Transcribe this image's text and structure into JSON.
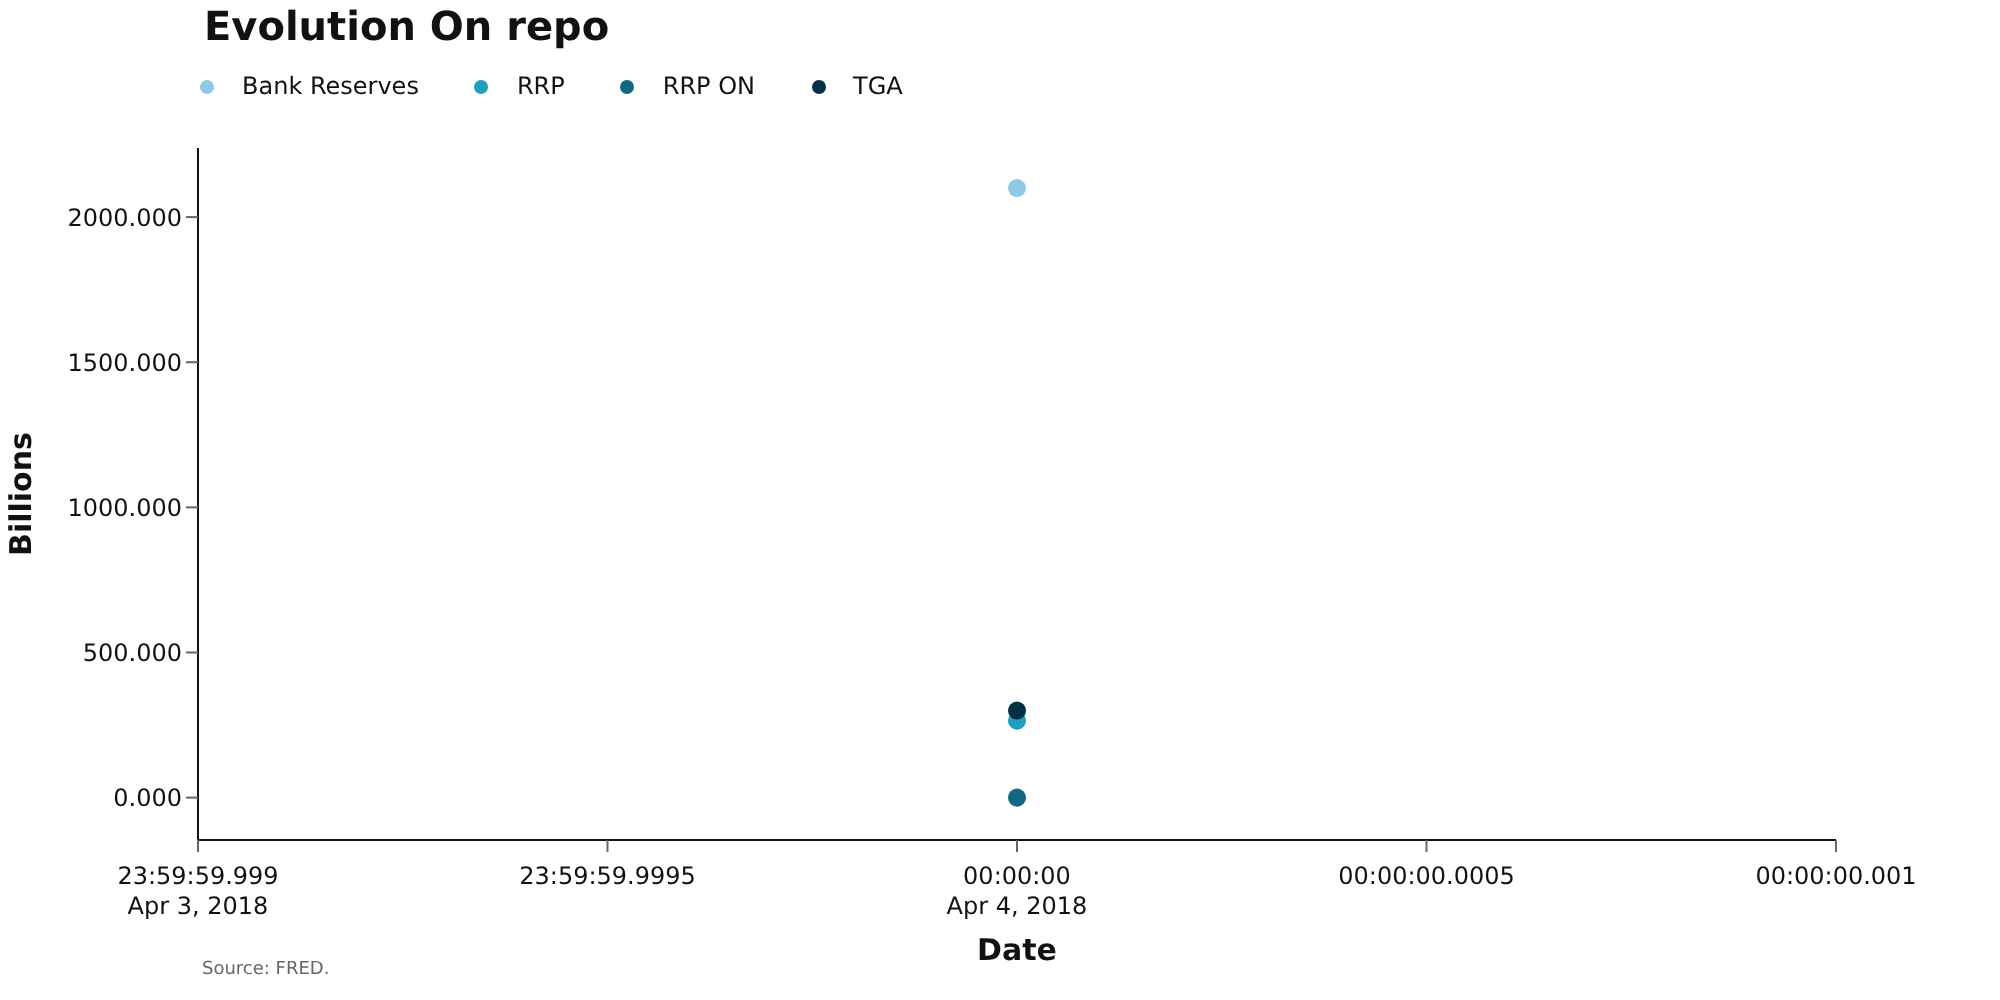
{
  "chart_data": {
    "type": "scatter",
    "title": "Evolution On repo",
    "xlabel": "Date",
    "ylabel": "Billions",
    "xlim": [
      "2018-04-03T23:59:59.999",
      "2018-04-04T00:00:00.001"
    ],
    "xticks": [
      {
        "value": "2018-04-03T23:59:59.999",
        "label": "23:59:59.999\nApr 3, 2018"
      },
      {
        "value": "2018-04-03T23:59:59.9995",
        "label": "23:59:59.9995"
      },
      {
        "value": "2018-04-04T00:00:00",
        "label": "00:00:00\nApr 4, 2018"
      },
      {
        "value": "2018-04-04T00:00:00.0005",
        "label": "00:00:00.0005"
      },
      {
        "value": "2018-04-04T00:00:00.001",
        "label": "00:00:00.001"
      }
    ],
    "ylim": [
      -146,
      2238
    ],
    "yticks": [
      {
        "value": 0,
        "label": "0.000"
      },
      {
        "value": 500,
        "label": "500.000"
      },
      {
        "value": 1000,
        "label": "1000.000"
      },
      {
        "value": 1500,
        "label": "1500.000"
      },
      {
        "value": 2000,
        "label": "2000.000"
      }
    ],
    "x": [
      "2018-04-04"
    ],
    "series": [
      {
        "name": "Bank Reserves",
        "color": "#8ecae6",
        "values": [
          2100
        ]
      },
      {
        "name": "RRP",
        "color": "#219ebc",
        "values": [
          265
        ]
      },
      {
        "name": "RRP ON",
        "color": "#126782",
        "values": [
          0
        ]
      },
      {
        "name": "TGA",
        "color": "#023047",
        "values": [
          300
        ]
      }
    ],
    "grid": false,
    "legend": "top left",
    "marker": "circle",
    "annotations": [
      "Source: FRED."
    ]
  }
}
